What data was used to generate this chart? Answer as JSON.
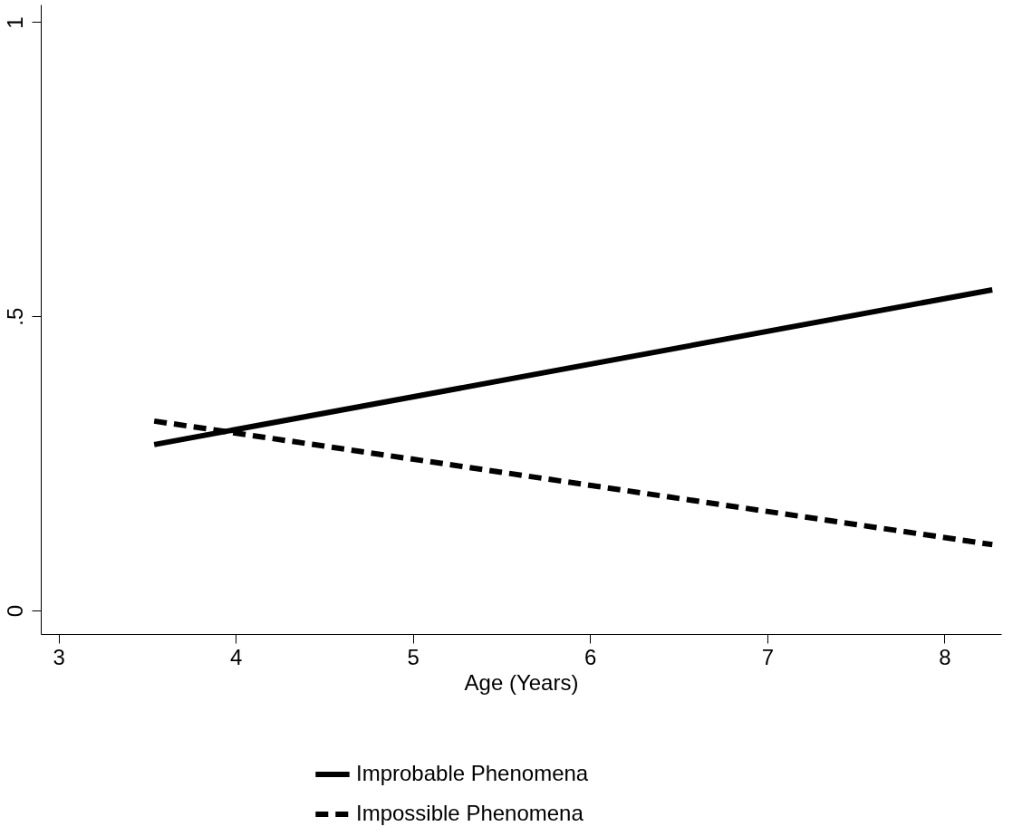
{
  "chart_data": {
    "type": "line",
    "xlabel": "Age (Years)",
    "series": [
      {
        "name": "Improbable Phenomena",
        "color": "#000000",
        "line_style": "solid",
        "values": [
          0.282,
          0.545
        ]
      },
      {
        "name": "Impossible Phenomena",
        "color": "#000000",
        "line_style": "dashed",
        "values": [
          0.322,
          0.112
        ]
      }
    ],
    "x": [
      3.54,
      8.27
    ],
    "xlim": [
      2.9,
      8.32
    ],
    "xticks": [
      3,
      4,
      5,
      6,
      7,
      8
    ],
    "ylim": [
      -0.04,
      1.03
    ],
    "yticks": [
      0,
      {
        "value": 0.5,
        "label": ".5"
      },
      1
    ],
    "grid": false,
    "legend": "bottom",
    "marker": "none"
  }
}
